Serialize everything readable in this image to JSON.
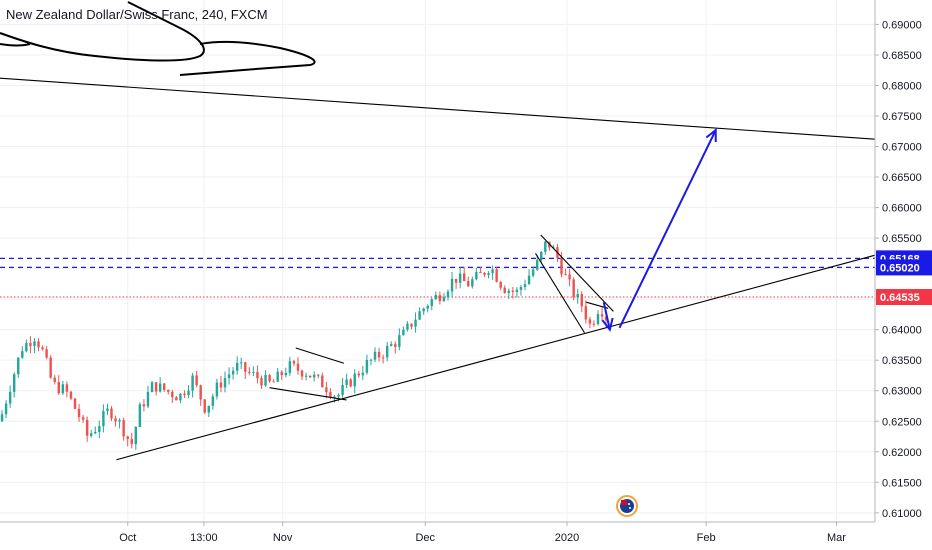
{
  "chart_data": {
    "type": "candlestick",
    "title": "New Zealand Dollar/Swiss Franc, 240, FXCM",
    "yaxis": {
      "range": [
        0.6085,
        0.694
      ],
      "ticks": [
        "0.69000",
        "0.68500",
        "0.68000",
        "0.67500",
        "0.67000",
        "0.66500",
        "0.66000",
        "0.65500",
        "0.65000",
        "0.64500",
        "0.64000",
        "0.63500",
        "0.63000",
        "0.62500",
        "0.62000",
        "0.61500",
        "0.61000"
      ],
      "tick_values": [
        0.69,
        0.685,
        0.68,
        0.675,
        0.67,
        0.665,
        0.66,
        0.655,
        0.65,
        0.645,
        0.64,
        0.635,
        0.63,
        0.625,
        0.62,
        0.615,
        0.61
      ]
    },
    "xaxis": {
      "ticks": [
        {
          "label": "Oct",
          "t": 0.146
        },
        {
          "label": "13:00",
          "t": 0.233
        },
        {
          "label": "Nov",
          "t": 0.323
        },
        {
          "label": "Dec",
          "t": 0.486
        },
        {
          "label": "2020",
          "t": 0.648
        },
        {
          "label": "Feb",
          "t": 0.807
        },
        {
          "label": "Mar",
          "t": 0.956
        }
      ]
    },
    "price_levels": [
      {
        "value": 0.65168,
        "label": "0.65168",
        "style": "dashed",
        "color": "#1a1ae6"
      },
      {
        "value": 0.6502,
        "label": "0.65020",
        "style": "dashed",
        "color": "#1a1ae6"
      },
      {
        "value": 0.64535,
        "label": "0.64535",
        "style": "dotted",
        "color": "#f23645"
      }
    ],
    "path": [
      [
        0.0,
        0.625
      ],
      [
        0.01,
        0.63
      ],
      [
        0.025,
        0.637
      ],
      [
        0.04,
        0.639
      ],
      [
        0.05,
        0.636
      ],
      [
        0.06,
        0.631
      ],
      [
        0.075,
        0.63
      ],
      [
        0.09,
        0.626
      ],
      [
        0.1,
        0.6225
      ],
      [
        0.11,
        0.624
      ],
      [
        0.125,
        0.627
      ],
      [
        0.14,
        0.624
      ],
      [
        0.15,
        0.621
      ],
      [
        0.16,
        0.627
      ],
      [
        0.175,
        0.631
      ],
      [
        0.19,
        0.63
      ],
      [
        0.205,
        0.629
      ],
      [
        0.22,
        0.632
      ],
      [
        0.235,
        0.627
      ],
      [
        0.25,
        0.631
      ],
      [
        0.27,
        0.634
      ],
      [
        0.29,
        0.6325
      ],
      [
        0.31,
        0.631
      ],
      [
        0.33,
        0.634
      ],
      [
        0.35,
        0.633
      ],
      [
        0.37,
        0.631
      ],
      [
        0.385,
        0.629
      ],
      [
        0.4,
        0.6315
      ],
      [
        0.42,
        0.6345
      ],
      [
        0.44,
        0.6365
      ],
      [
        0.46,
        0.639
      ],
      [
        0.475,
        0.642
      ],
      [
        0.49,
        0.6445
      ],
      [
        0.505,
        0.646
      ],
      [
        0.52,
        0.6485
      ],
      [
        0.535,
        0.6475
      ],
      [
        0.55,
        0.649
      ],
      [
        0.56,
        0.6505
      ],
      [
        0.575,
        0.647
      ],
      [
        0.59,
        0.646
      ],
      [
        0.605,
        0.649
      ],
      [
        0.615,
        0.651
      ],
      [
        0.625,
        0.6545
      ],
      [
        0.635,
        0.6525
      ],
      [
        0.645,
        0.649
      ],
      [
        0.655,
        0.646
      ],
      [
        0.665,
        0.644
      ],
      [
        0.675,
        0.6405
      ],
      [
        0.685,
        0.644
      ],
      [
        0.695,
        0.6415
      ]
    ],
    "candle_count": 150,
    "drawings": {
      "lower_trendline": [
        [
          0.133,
          0.6187
        ],
        [
          1.0,
          0.6522
        ]
      ],
      "upper_trendline": [
        [
          0.0,
          0.6812
        ],
        [
          1.0,
          0.6712
        ]
      ],
      "channel_upper": [
        [
          0.618,
          0.6555
        ],
        [
          0.701,
          0.643
        ]
      ],
      "channel_lower": [
        [
          0.612,
          0.6525
        ],
        [
          0.668,
          0.6395
        ]
      ],
      "nov_wedge_top": [
        [
          0.338,
          0.637
        ],
        [
          0.393,
          0.6345
        ]
      ],
      "nov_wedge_bottom": [
        [
          0.308,
          0.6305
        ],
        [
          0.396,
          0.6285
        ]
      ],
      "dec_wedge_top": [
        [
          0.67,
          0.6445
        ],
        [
          0.695,
          0.6435
        ]
      ],
      "arrow_down": [
        [
          0.69,
          0.6445
        ],
        [
          0.697,
          0.64
        ]
      ],
      "arrow_up": [
        [
          0.708,
          0.6403
        ],
        [
          0.818,
          0.6727
        ]
      ]
    },
    "ylabel": "",
    "xlabel": ""
  }
}
